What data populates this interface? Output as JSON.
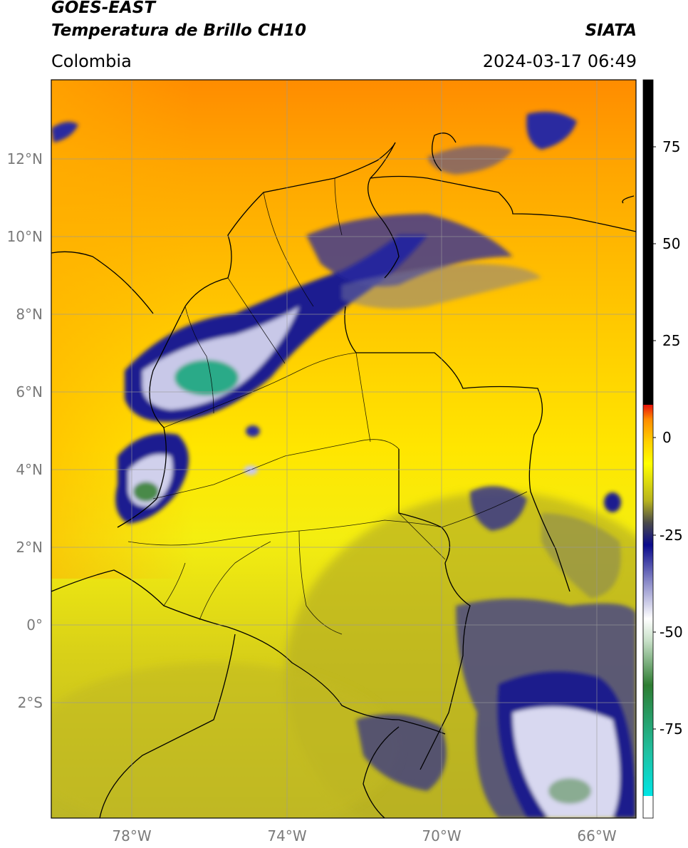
{
  "header": {
    "satellite": "GOES-EAST",
    "product": "Temperatura de Brillo CH10",
    "region": "Colombia",
    "agency": "SIATA",
    "datetime": "2024-03-17 06:49"
  },
  "map": {
    "lon_range": [
      -80,
      -65
    ],
    "lat_range": [
      -5,
      14
    ],
    "lat_ticks": [
      {
        "value": 12,
        "label": "12°N"
      },
      {
        "value": 10,
        "label": "10°N"
      },
      {
        "value": 8,
        "label": "8°N"
      },
      {
        "value": 6,
        "label": "6°N"
      },
      {
        "value": 4,
        "label": "4°N"
      },
      {
        "value": 2,
        "label": "2°N"
      },
      {
        "value": 0,
        "label": "0°"
      },
      {
        "value": -2,
        "label": "2°S"
      }
    ],
    "lon_ticks": [
      {
        "value": -78,
        "label": "78°W"
      },
      {
        "value": -74,
        "label": "74°W"
      },
      {
        "value": -70,
        "label": "70°W"
      },
      {
        "value": -66,
        "label": "66°W"
      }
    ],
    "grid": true
  },
  "colorbar": {
    "range": [
      -100,
      90
    ],
    "ticks": [
      {
        "value": 75,
        "label": "75"
      },
      {
        "value": 50,
        "label": "50"
      },
      {
        "value": 25,
        "label": "25"
      },
      {
        "value": 0,
        "label": "0"
      },
      {
        "value": -25,
        "label": "-25"
      },
      {
        "value": -50,
        "label": "-50"
      },
      {
        "value": -75,
        "label": "-75"
      }
    ],
    "colors": {
      "black": "#000000",
      "red": "#e8120c",
      "orange": "#ff8c00",
      "yellow": "#ffff00",
      "olive": "#b8b41e",
      "dark_gray": "#4a4a4a",
      "navy": "#0a0a8c",
      "white": "#ffffff",
      "green": "#2e7d32",
      "teal": "#20c0a0",
      "cyan": "#00e5e5"
    }
  }
}
